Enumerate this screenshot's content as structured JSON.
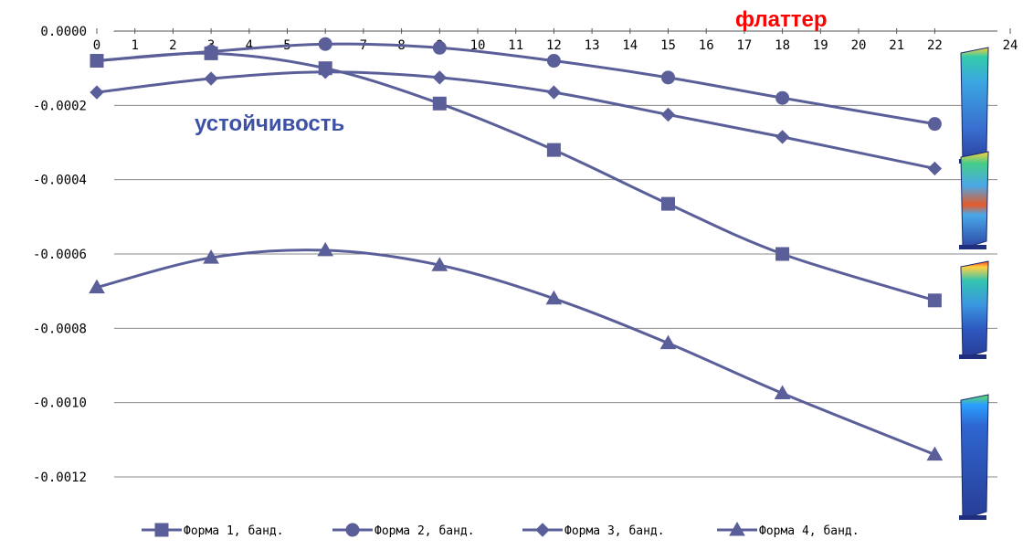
{
  "chart_data": {
    "type": "line",
    "title": "",
    "xlabel": "",
    "ylabel": "",
    "xlim": [
      0,
      24
    ],
    "ylim": [
      -0.0012,
      0.0
    ],
    "x_ticks": [
      "0",
      "1",
      "2",
      "3",
      "4",
      "5",
      "6",
      "7",
      "8",
      "9",
      "10",
      "11",
      "12",
      "13",
      "14",
      "15",
      "16",
      "17",
      "18",
      "19",
      "20",
      "21",
      "22",
      "24"
    ],
    "y_ticks": [
      "0.0000",
      "-0.0002",
      "-0.0004",
      "-0.0006",
      "-0.0008",
      "-0.0010",
      "-0.0012"
    ],
    "grid": "horizontal",
    "legend_position": "bottom",
    "series_color": "#5b5f99",
    "series": [
      {
        "name": "Форма 1, банд.",
        "marker": "square",
        "points": [
          [
            0,
            -8e-05
          ],
          [
            3,
            -6e-05
          ],
          [
            6,
            -0.0001
          ],
          [
            9,
            -0.000195
          ],
          [
            12,
            -0.00032
          ],
          [
            15,
            -0.000465
          ],
          [
            18,
            -0.0006
          ],
          [
            22,
            -0.000725
          ]
        ]
      },
      {
        "name": "Форма 2, банд.",
        "marker": "circle",
        "points": [
          [
            0,
            -8e-05
          ],
          [
            3,
            -5.5e-05
          ],
          [
            6,
            -3.5e-05
          ],
          [
            9,
            -4.5e-05
          ],
          [
            12,
            -8e-05
          ],
          [
            15,
            -0.000125
          ],
          [
            18,
            -0.00018
          ],
          [
            22,
            -0.00025
          ]
        ]
      },
      {
        "name": "Форма 3, банд.",
        "marker": "diamond",
        "points": [
          [
            0,
            -0.000165
          ],
          [
            3,
            -0.000128
          ],
          [
            6,
            -0.00011
          ],
          [
            9,
            -0.000125
          ],
          [
            12,
            -0.000165
          ],
          [
            15,
            -0.000225
          ],
          [
            18,
            -0.000285
          ],
          [
            22,
            -0.00037
          ]
        ]
      },
      {
        "name": "Форма 4, банд.",
        "marker": "triangle",
        "points": [
          [
            0,
            -0.00069
          ],
          [
            3,
            -0.00061
          ],
          [
            6,
            -0.00059
          ],
          [
            9,
            -0.00063
          ],
          [
            12,
            -0.00072
          ],
          [
            15,
            -0.00084
          ],
          [
            18,
            -0.000975
          ],
          [
            22,
            -0.00114
          ]
        ]
      }
    ],
    "annotations": [
      {
        "text": "флаттер",
        "color": "#ff0000"
      },
      {
        "text": "устойчивость",
        "color": "#3d51a6"
      }
    ]
  }
}
